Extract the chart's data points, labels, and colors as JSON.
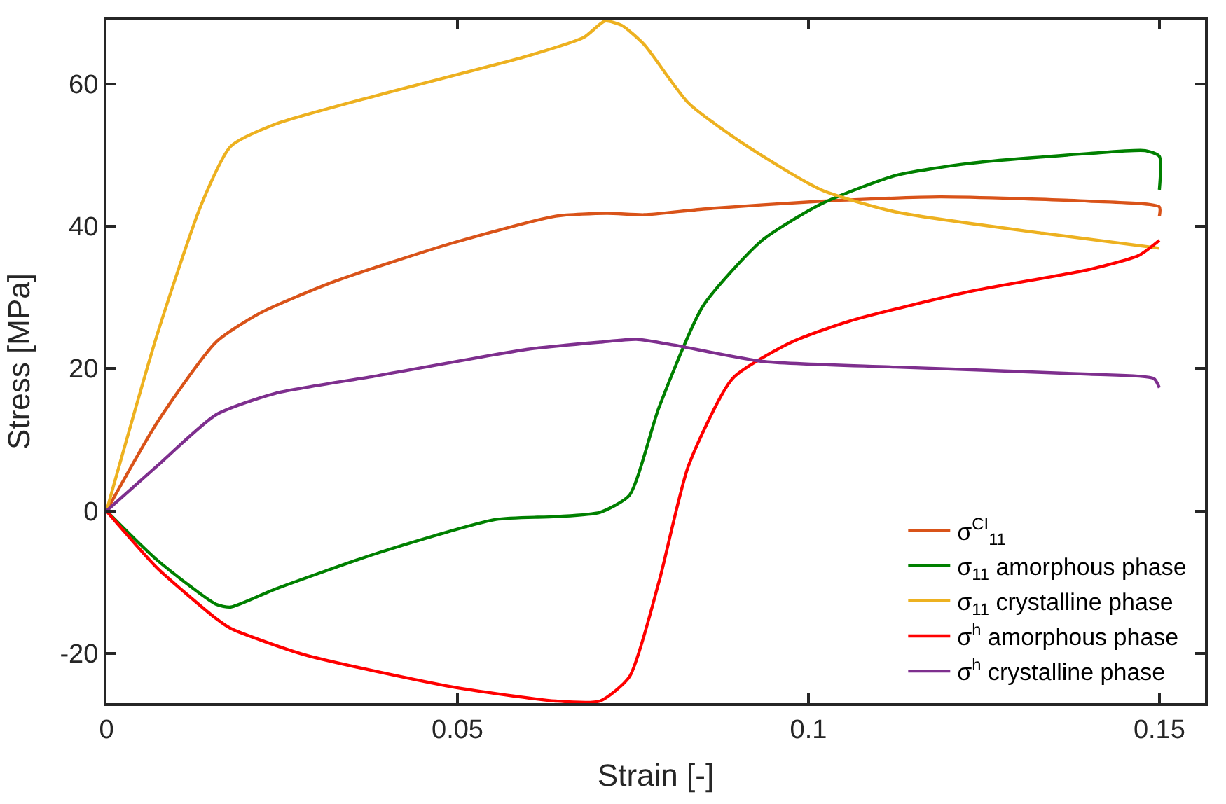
{
  "chart_data": {
    "type": "line",
    "xlabel": "Strain [-]",
    "ylabel": "Stress [MPa]",
    "xlim": [
      0,
      0.1565
    ],
    "ylim": [
      -27,
      69
    ],
    "xticks": [
      0,
      0.05,
      0.1,
      0.15
    ],
    "yticks": [
      -20,
      0,
      20,
      40,
      60
    ],
    "grid": false,
    "legend": "bottom right",
    "marker": "none",
    "line_style": "solid",
    "series": [
      {
        "name": "σ$^{CI}$$_{11}$",
        "color": "#d95319",
        "x": [
          0,
          0.0072,
          0.0156,
          0.0219,
          0.0324,
          0.0492,
          0.064,
          0.0713,
          0.0766,
          0.085,
          0.1018,
          0.1187,
          0.14,
          0.15,
          0.15
        ],
        "values": [
          0,
          12.4,
          23.7,
          27.8,
          32.2,
          37.6,
          41.4,
          41.8,
          41.6,
          42.4,
          43.5,
          44.1,
          43.5,
          42.7,
          41.4
        ]
      },
      {
        "name": "σ$_{11}$ amorphous phase",
        "color": "#008000",
        "x": [
          0,
          0.0072,
          0.0156,
          0.0177,
          0.024,
          0.0387,
          0.0555,
          0.064,
          0.0703,
          0.0745,
          0.0787,
          0.085,
          0.0934,
          0.1018,
          0.1124,
          0.1229,
          0.14,
          0.148,
          0.15,
          0.15
        ],
        "values": [
          0,
          -6.9,
          -13.1,
          -13.5,
          -11,
          -5.9,
          -1.2,
          -0.8,
          -0.2,
          2.2,
          14.5,
          28.8,
          38,
          43.1,
          47.1,
          48.8,
          50.2,
          50.6,
          49.8,
          45.1
        ]
      },
      {
        "name": "σ$_{11}$ crystalline phase",
        "color": "#edb120",
        "x": [
          0,
          0.0072,
          0.0135,
          0.0177,
          0.024,
          0.0387,
          0.06,
          0.068,
          0.071,
          0.0734,
          0.0766,
          0.0829,
          0.0913,
          0.1018,
          0.1124,
          0.1334,
          0.15
        ],
        "values": [
          0,
          24.7,
          43,
          51.2,
          54.3,
          58.4,
          63.9,
          66.5,
          68.8,
          68.2,
          65.5,
          57.3,
          51.2,
          45.1,
          42,
          39,
          36.9
        ]
      },
      {
        "name": "σ$^{h}$ amorphous phase",
        "color": "#ff0000",
        "x": [
          0,
          0.0072,
          0.0156,
          0.0177,
          0.0282,
          0.0492,
          0.064,
          0.0703,
          0.0745,
          0.0787,
          0.0829,
          0.0892,
          0.0976,
          0.106,
          0.1229,
          0.14,
          0.1471,
          0.15
        ],
        "values": [
          0,
          -8,
          -15.1,
          -16.5,
          -20.2,
          -24.7,
          -26.7,
          -26.7,
          -23.3,
          -10,
          6.3,
          18.6,
          23.7,
          26.7,
          30.8,
          33.9,
          35.9,
          38
        ]
      },
      {
        "name": "σ$^{h}$ crystalline phase",
        "color": "#7e2f8e",
        "x": [
          0,
          0.0072,
          0.0156,
          0.024,
          0.0387,
          0.06,
          0.0703,
          0.0755,
          0.0808,
          0.0934,
          0.1124,
          0.14,
          0.1492,
          0.15
        ],
        "values": [
          0,
          6.3,
          13.5,
          16.5,
          19,
          22.7,
          23.7,
          24.1,
          23.3,
          21,
          20.2,
          19.2,
          18.6,
          17.3
        ]
      }
    ]
  }
}
